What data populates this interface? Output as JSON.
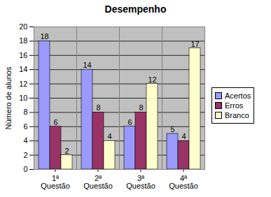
{
  "chart_data": {
    "type": "bar",
    "title": "Desempenho",
    "y_label": "Número de alunos",
    "categories": [
      "1ª Questão",
      "2ª Questão",
      "3ª Questão",
      "4ª Questão"
    ],
    "series": [
      {
        "name": "Acertos",
        "color": "#9999ff",
        "values": [
          18,
          14,
          6,
          5
        ]
      },
      {
        "name": "Erros",
        "color": "#993366",
        "values": [
          6,
          8,
          8,
          4
        ]
      },
      {
        "name": "Branco",
        "color": "#ffffcc",
        "values": [
          2,
          4,
          12,
          17
        ]
      }
    ],
    "ylim": [
      0,
      20
    ],
    "yticks": [
      0,
      2,
      4,
      6,
      8,
      10,
      12,
      14,
      16,
      18,
      20
    ],
    "grid": true,
    "legend": "right",
    "data_labels": true
  }
}
